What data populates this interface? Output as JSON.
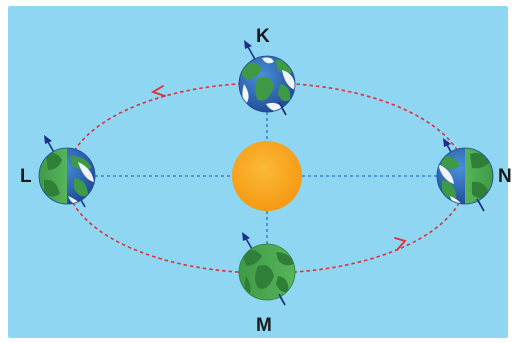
{
  "colors": {
    "background": "#8fd6f2",
    "sun": "#f7a41d",
    "orbit": "#e0303a",
    "guide_lines": "#2f86d6",
    "ocean": "#2a63b8",
    "land": "#3e9a45",
    "axis": "#1f2f87"
  },
  "positions": [
    {
      "id": "K",
      "label": "K",
      "place": "top"
    },
    {
      "id": "L",
      "label": "L",
      "place": "left"
    },
    {
      "id": "M",
      "label": "M",
      "place": "bottom"
    },
    {
      "id": "N",
      "label": "N",
      "place": "right"
    }
  ],
  "icons": {
    "sun": "sun-icon",
    "earth": "earth-globe-icon",
    "axis": "axis-arrow-icon",
    "direction": "orbit-direction-arrow-icon"
  }
}
